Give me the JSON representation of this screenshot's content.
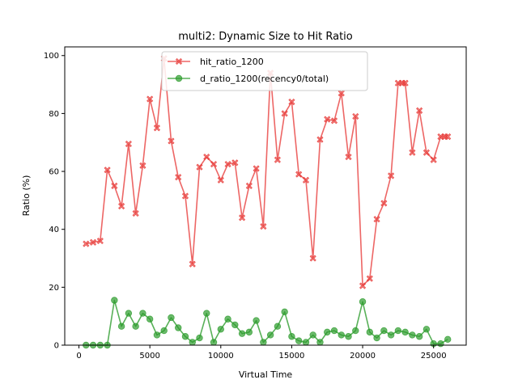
{
  "chart_data": {
    "type": "line",
    "title": "multi2: Dynamic Size to Hit Ratio",
    "xlabel": "Virtual Time",
    "ylabel": "Ratio (%)",
    "xlim": [
      -1000,
      27300
    ],
    "ylim": [
      0,
      103
    ],
    "xticks": [
      0,
      5000,
      10000,
      15000,
      20000,
      25000
    ],
    "yticks": [
      0,
      20,
      40,
      60,
      80,
      100
    ],
    "legend_position": "upper center",
    "grid": false,
    "series": [
      {
        "name": "hit_ratio_1200",
        "color": "#e8403e",
        "marker": "X",
        "x": [
          500,
          1000,
          1500,
          2000,
          2500,
          3000,
          3500,
          4000,
          4500,
          5000,
          5500,
          6000,
          6500,
          7000,
          7500,
          8000,
          8500,
          9000,
          9500,
          10000,
          10500,
          11000,
          11500,
          12000,
          12500,
          13000,
          13500,
          14000,
          14500,
          15000,
          15500,
          16000,
          16500,
          17000,
          17500,
          18000,
          18500,
          19000,
          19500,
          20000,
          20500,
          21000,
          21500,
          22000,
          22500,
          22800,
          23000,
          23500,
          24000,
          24500,
          25000,
          25500,
          25800,
          26000
        ],
        "y": [
          35,
          35.5,
          36,
          60.5,
          55,
          48,
          69.5,
          45.5,
          62,
          85,
          75,
          99,
          70.5,
          58,
          51.5,
          28,
          61.5,
          65,
          62.5,
          57,
          62.5,
          63,
          44,
          55,
          61,
          41,
          94,
          64,
          80,
          84,
          59,
          57,
          30,
          71,
          78,
          77.5,
          87,
          65,
          79,
          20.5,
          23,
          43.5,
          49,
          58.5,
          90.5,
          90.5,
          90.5,
          66.5,
          81,
          66.5,
          64,
          72,
          72,
          72
        ]
      },
      {
        "name": "d_ratio_1200(recency0/total)",
        "color": "#2e9c2e",
        "marker": "o",
        "x": [
          500,
          1000,
          1500,
          2000,
          2500,
          3000,
          3500,
          4000,
          4500,
          5000,
          5500,
          6000,
          6500,
          7000,
          7500,
          8000,
          8500,
          9000,
          9500,
          10000,
          10500,
          11000,
          11500,
          12000,
          12500,
          13000,
          13500,
          14000,
          14500,
          15000,
          15500,
          16000,
          16500,
          17000,
          17500,
          18000,
          18500,
          19000,
          19500,
          20000,
          20500,
          21000,
          21500,
          22000,
          22500,
          23000,
          23500,
          24000,
          24500,
          25000,
          25500,
          26000
        ],
        "y": [
          0,
          0,
          0,
          0,
          15.5,
          6.5,
          11,
          6.5,
          11,
          9,
          3.5,
          5,
          9.5,
          6,
          3,
          1,
          2.5,
          11,
          1,
          5.5,
          9,
          7,
          4,
          4.5,
          8.5,
          1,
          3.5,
          6.5,
          11.5,
          3,
          1.5,
          1,
          3.5,
          1,
          4.5,
          5,
          3.5,
          3,
          5,
          15,
          4.5,
          2.5,
          5,
          3.5,
          5,
          4.5,
          3.5,
          3,
          5.5,
          0.5,
          0.5,
          2
        ]
      }
    ]
  }
}
